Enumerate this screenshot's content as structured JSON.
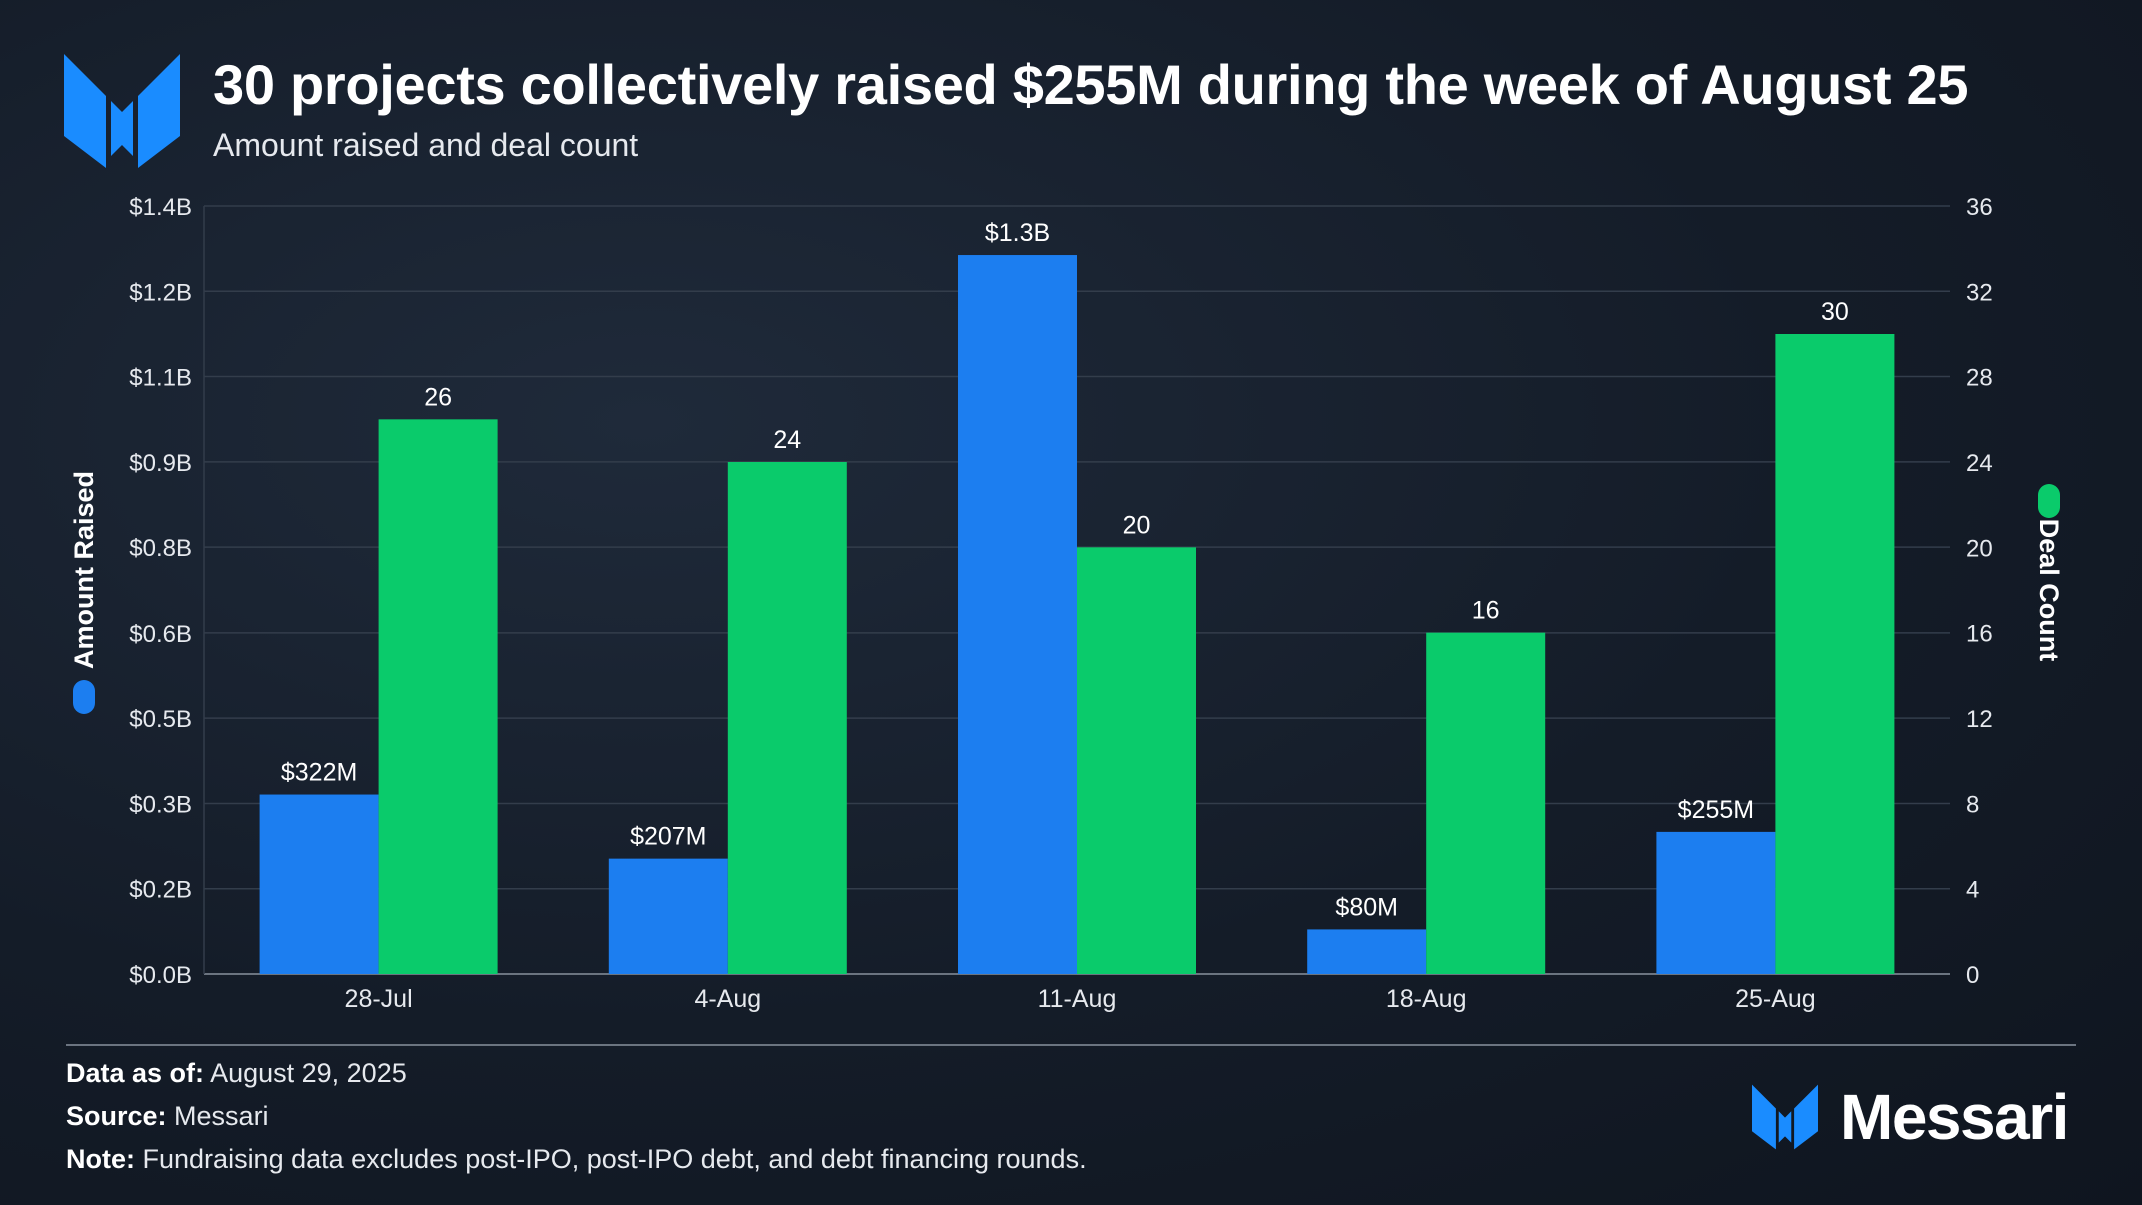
{
  "header": {
    "title": "30 projects collectively raised $255M during the week of August 25",
    "subtitle": "Amount raised and deal count"
  },
  "colors": {
    "amount": "#1c7ef0",
    "deals": "#0acb6b",
    "brand": "#1a8cff"
  },
  "chart_data": {
    "type": "bar",
    "categories": [
      "28-Jul",
      "4-Aug",
      "11-Aug",
      "18-Aug",
      "25-Aug"
    ],
    "series": [
      {
        "name": "Amount Raised",
        "axis": "left",
        "values": [
          322,
          207,
          1290,
          80,
          255
        ],
        "labels": [
          "$322M",
          "$207M",
          "$1.3B",
          "$80M",
          "$255M"
        ]
      },
      {
        "name": "Deal Count",
        "axis": "right",
        "values": [
          26,
          24,
          20,
          16,
          30
        ],
        "labels": [
          "26",
          "24",
          "20",
          "16",
          "30"
        ]
      }
    ],
    "y_left": {
      "label": "Amount Raised",
      "range": [
        0,
        1378
      ],
      "ticks": [
        0,
        153,
        306,
        459,
        612,
        766,
        919,
        1072,
        1225,
        1378
      ],
      "tick_labels": [
        "$0.0B",
        "$0.2B",
        "$0.3B",
        "$0.5B",
        "$0.6B",
        "$0.8B",
        "$0.9B",
        "$1.1B",
        "$1.2B",
        "$1.4B"
      ]
    },
    "y_right": {
      "label": "Deal Count",
      "range": [
        0,
        36
      ],
      "ticks": [
        0,
        4,
        8,
        12,
        16,
        20,
        24,
        28,
        32,
        36
      ],
      "tick_labels": [
        "0",
        "4",
        "8",
        "12",
        "16",
        "20",
        "24",
        "28",
        "32",
        "36"
      ]
    },
    "grid": true,
    "legend": "axis-titles"
  },
  "footer": {
    "data_as_of_label": "Data as of:",
    "data_as_of": "August 29, 2025",
    "source_label": "Source:",
    "source": "Messari",
    "note_label": "Note:",
    "note": "Fundraising data excludes post-IPO, post-IPO debt, and debt financing rounds."
  },
  "brand": {
    "name": "Messari",
    "logo_icon": "messari-logo-icon"
  }
}
